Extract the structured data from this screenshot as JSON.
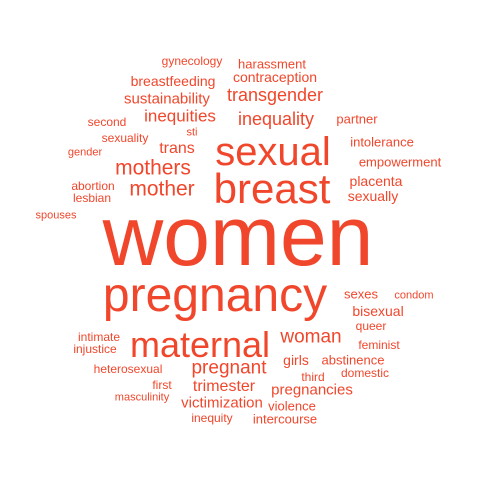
{
  "word_cloud": {
    "color": "#f0472c",
    "words": [
      {
        "text": "women"
      },
      {
        "text": "pregnancy"
      },
      {
        "text": "breast"
      },
      {
        "text": "sexual"
      },
      {
        "text": "maternal"
      },
      {
        "text": "mothers"
      },
      {
        "text": "mother"
      },
      {
        "text": "woman"
      },
      {
        "text": "pregnant"
      },
      {
        "text": "transgender"
      },
      {
        "text": "inequality"
      },
      {
        "text": "inequities"
      },
      {
        "text": "trans"
      },
      {
        "text": "sustainability"
      },
      {
        "text": "trimester"
      },
      {
        "text": "pregnancies"
      },
      {
        "text": "victimization"
      },
      {
        "text": "girls"
      },
      {
        "text": "sexually"
      },
      {
        "text": "placenta"
      },
      {
        "text": "bisexual"
      },
      {
        "text": "breastfeeding"
      },
      {
        "text": "contraception"
      },
      {
        "text": "harassment"
      },
      {
        "text": "gynecology"
      },
      {
        "text": "partner"
      },
      {
        "text": "intolerance"
      },
      {
        "text": "empowerment"
      },
      {
        "text": "second"
      },
      {
        "text": "sexuality"
      },
      {
        "text": "sti"
      },
      {
        "text": "gender"
      },
      {
        "text": "abortion"
      },
      {
        "text": "lesbian"
      },
      {
        "text": "spouses"
      },
      {
        "text": "sexes"
      },
      {
        "text": "condom"
      },
      {
        "text": "queer"
      },
      {
        "text": "intimate"
      },
      {
        "text": "injustice"
      },
      {
        "text": "feminist"
      },
      {
        "text": "abstinence"
      },
      {
        "text": "heterosexual"
      },
      {
        "text": "domestic"
      },
      {
        "text": "third"
      },
      {
        "text": "first"
      },
      {
        "text": "masculinity"
      },
      {
        "text": "violence"
      },
      {
        "text": "inequity"
      },
      {
        "text": "intercourse"
      }
    ]
  }
}
